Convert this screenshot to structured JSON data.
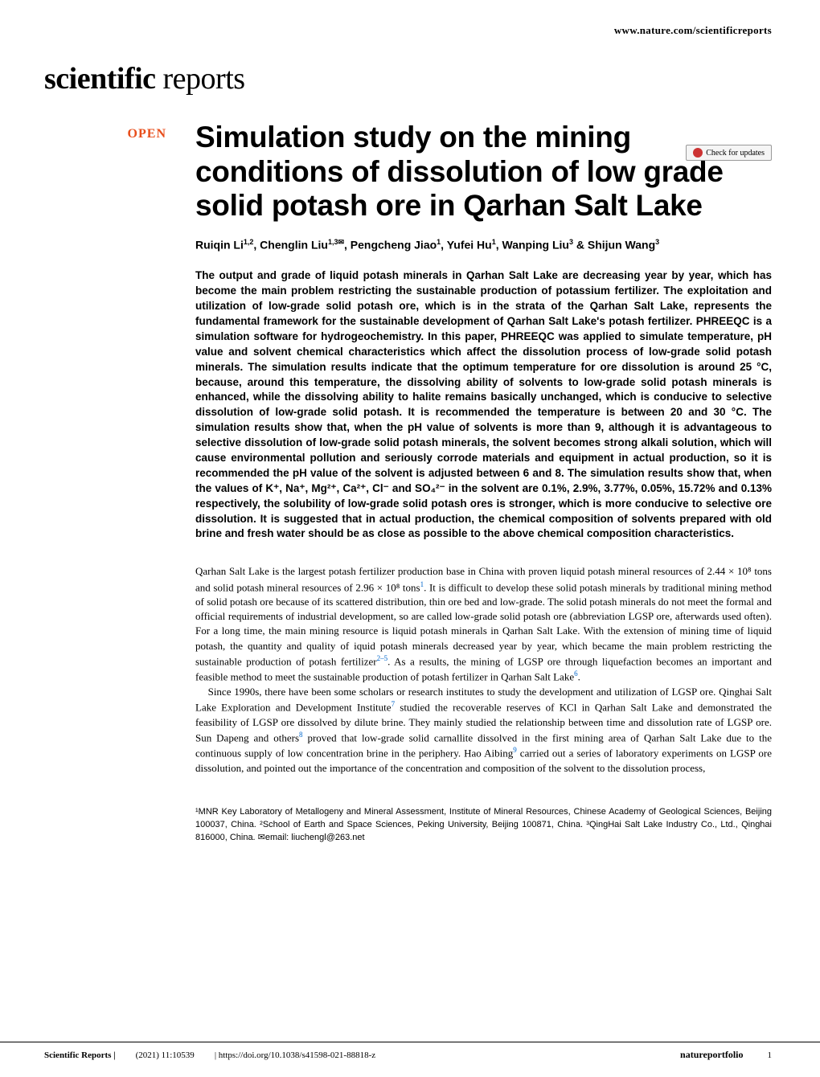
{
  "header": {
    "url": "www.nature.com/scientificreports"
  },
  "logo": {
    "bold": "scientific",
    "light": " reports"
  },
  "crossmark": {
    "label": "Check for updates"
  },
  "open_label": "OPEN",
  "title": "Simulation study on the mining conditions of dissolution of low grade solid potash ore in Qarhan Salt Lake",
  "authors_html": "Ruiqin Li<sup class='sup'>1,2</sup>, Chenglin Liu<sup class='sup'>1,3✉</sup>, Pengcheng Jiao<sup class='sup'>1</sup>, Yufei Hu<sup class='sup'>1</sup>, Wanping Liu<sup class='sup'>3</sup> & Shijun Wang<sup class='sup'>3</sup>",
  "abstract": "The output and grade of liquid potash minerals in Qarhan Salt Lake are decreasing year by year, which has become the main problem restricting the sustainable production of potassium fertilizer. The exploitation and utilization of low-grade solid potash ore, which is in the strata of the Qarhan Salt Lake, represents the fundamental framework for the sustainable development of Qarhan Salt Lake's potash fertilizer. PHREEQC is a simulation software for hydrogeochemistry. In this paper, PHREEQC was applied to simulate temperature, pH value and solvent chemical characteristics which affect the dissolution process of low-grade solid potash minerals. The simulation results indicate that the optimum temperature for ore dissolution is around 25 °C, because, around this temperature, the dissolving ability of solvents to low-grade solid potash minerals is enhanced, while the dissolving ability to halite remains basically unchanged, which is conducive to selective dissolution of low-grade solid potash. It is recommended the temperature is between 20 and 30 °C. The simulation results show that, when the pH value of solvents is more than 9, although it is advantageous to selective dissolution of low-grade solid potash minerals, the solvent becomes strong alkali solution, which will cause environmental pollution and seriously corrode materials and equipment in actual production, so it is recommended the pH value of the solvent is adjusted between 6 and 8. The simulation results show that, when the values of K⁺, Na⁺, Mg²⁺, Ca²⁺, Cl⁻ and SO₄²⁻ in the solvent are 0.1%, 2.9%, 3.77%, 0.05%, 15.72% and 0.13% respectively, the solubility of low-grade solid potash ores is stronger, which is more conducive to selective ore dissolution. It is suggested that in actual production, the chemical composition of solvents prepared with old brine and fresh water should be as close as possible to the above chemical composition characteristics.",
  "body": {
    "para1_pre": "Qarhan Salt Lake is the largest potash fertilizer production base in China with proven liquid potash mineral resources of 2.44 × 10⁸ tons and solid potash mineral resources of 2.96 × 10⁸ tons",
    "ref1": "1",
    "para1_mid": ". It is difficult to develop these solid potash minerals by traditional mining method of solid potash ore because of its scattered distribution, thin ore bed and low-grade. The solid potash minerals do not meet the formal and official requirements of industrial development, so are called low-grade solid potash ore (abbreviation LGSP ore, afterwards used often). For a long time, the main mining resource is liquid potash minerals in Qarhan Salt Lake. With the extension of mining time of liquid potash, the quantity and quality of iquid potash minerals decreased year by year, which became the main problem restricting the sustainable production of potash fertilizer",
    "ref2": "2–5",
    "para1_mid2": ". As a results, the mining of LGSP ore through liquefaction becomes an important and feasible method to meet the sustainable production of potash fertilizer in Qarhan Salt Lake",
    "ref3": "6",
    "para1_end": ".",
    "para2_pre": "Since 1990s, there have been some scholars or research institutes to study the development and utilization of LGSP ore. Qinghai Salt Lake Exploration and Development Institute",
    "ref4": "7",
    "para2_mid": " studied the recoverable reserves of KCl in Qarhan Salt Lake and demonstrated the feasibility of LGSP ore dissolved by dilute brine. They mainly studied the relationship between time and dissolution rate of LGSP ore. Sun Dapeng and others",
    "ref5": "8",
    "para2_mid2": " proved that low-grade solid carnallite dissolved in the first mining area of Qarhan Salt Lake due to the continuous supply of low concentration brine in the periphery. Hao Aibing",
    "ref6": "9",
    "para2_end": " carried out a series of laboratory experiments on LGSP ore dissolution, and pointed out the importance of the concentration and composition of the solvent to the dissolution process,"
  },
  "affiliations": "¹MNR Key Laboratory of Metallogeny and Mineral Assessment, Institute of Mineral Resources, Chinese Academy of Geological Sciences, Beijing 100037, China. ²School of Earth and Space Sciences, Peking University, Beijing 100871, China. ³QingHai Salt Lake Industry Co., Ltd., Qinghai 816000, China. ✉email: liuchengl@263.net",
  "footer": {
    "journal": "Scientific Reports |",
    "citation": "(2021) 11:10539",
    "doi": "| https://doi.org/10.1038/s41598-021-88818-z",
    "publisher": "natureportfolio",
    "page": "1"
  },
  "colors": {
    "open_badge": "#e84e1b",
    "link": "#0066cc",
    "crossmark_icon": "#cc3333",
    "text": "#000000",
    "background": "#ffffff"
  },
  "typography": {
    "title_size": 37,
    "body_size": 13,
    "abstract_size": 13.5,
    "authors_size": 14,
    "footer_size": 11
  }
}
